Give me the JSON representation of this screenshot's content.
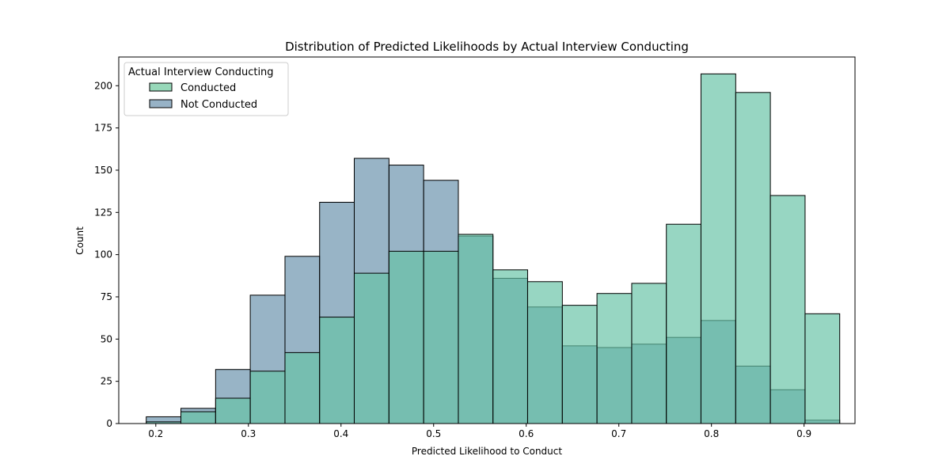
{
  "chart_data": {
    "type": "bar",
    "title": "Distribution of Predicted Likelihoods by Actual Interview Conducting",
    "xlabel": "Predicted Likelihood to Conduct",
    "ylabel": "Count",
    "xlim": [
      0.16,
      0.955
    ],
    "ylim": [
      0,
      217
    ],
    "x_ticks": [
      0.2,
      0.3,
      0.4,
      0.5,
      0.6,
      0.7,
      0.8,
      0.9
    ],
    "x_tick_labels": [
      "0.2",
      "0.3",
      "0.4",
      "0.5",
      "0.6",
      "0.7",
      "0.8",
      "0.9"
    ],
    "y_ticks": [
      0,
      25,
      50,
      75,
      100,
      125,
      150,
      175,
      200
    ],
    "y_tick_labels": [
      "0",
      "25",
      "50",
      "75",
      "100",
      "125",
      "150",
      "175",
      "200"
    ],
    "grid": false,
    "legend": {
      "title": "Actual Interview Conducting",
      "placement": "top-left"
    },
    "bin_edges": [
      0.1897,
      0.2271,
      0.2646,
      0.302,
      0.3395,
      0.3769,
      0.4143,
      0.4518,
      0.4892,
      0.5267,
      0.5641,
      0.6015,
      0.639,
      0.6764,
      0.7139,
      0.7513,
      0.7887,
      0.8262,
      0.8636,
      0.9011,
      0.9385
    ],
    "series": [
      {
        "name": "Conducted",
        "color": "#66c2a5",
        "values": [
          1,
          7,
          15,
          31,
          42,
          63,
          89,
          102,
          102,
          112,
          91,
          84,
          70,
          77,
          83,
          118,
          207,
          196,
          135,
          65
        ]
      },
      {
        "name": "Not Conducted",
        "color": "#3a6f92",
        "values": [
          4,
          9,
          32,
          76,
          99,
          131,
          157,
          153,
          144,
          111,
          86,
          69,
          46,
          45,
          47,
          51,
          61,
          34,
          20,
          2
        ]
      }
    ]
  }
}
